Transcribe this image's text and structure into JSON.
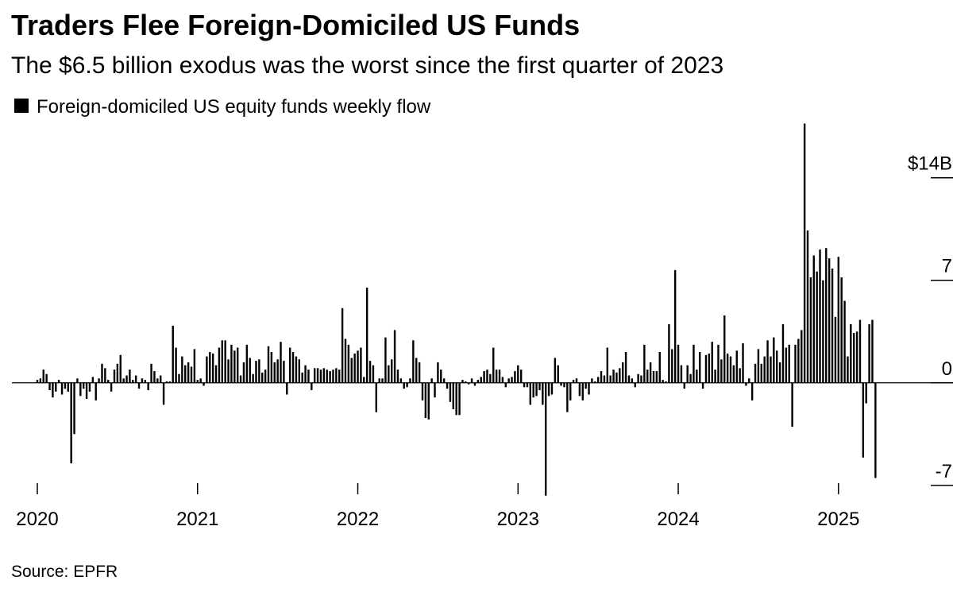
{
  "chart_data": {
    "type": "bar",
    "title": "Traders Flee Foreign-Domiciled US Funds",
    "subtitle": "The $6.5 billion exodus was the worst since the first quarter of 2023",
    "source": "Source: EPFR",
    "categories": [
      "2020",
      null,
      null,
      null,
      null,
      null,
      null,
      null,
      null,
      null,
      null,
      null,
      null,
      null,
      null,
      null,
      null,
      null,
      null,
      null,
      null,
      null,
      null,
      null,
      null,
      null,
      null,
      null,
      null,
      null,
      null,
      null,
      null,
      null,
      null,
      null,
      null,
      null,
      null,
      null,
      null,
      null,
      null,
      null,
      null,
      null,
      null,
      null,
      null,
      null,
      null,
      null,
      "2021",
      null,
      null,
      null,
      null,
      null,
      null,
      null,
      null,
      null,
      null,
      null,
      null,
      null,
      null,
      null,
      null,
      null,
      null,
      null,
      null,
      null,
      null,
      null,
      null,
      null,
      null,
      null,
      null,
      null,
      null,
      null,
      null,
      null,
      null,
      null,
      null,
      null,
      null,
      null,
      null,
      null,
      null,
      null,
      null,
      null,
      null,
      null,
      null,
      null,
      null,
      null,
      "2022",
      null,
      null,
      null,
      null,
      null,
      null,
      null,
      null,
      null,
      null,
      null,
      null,
      null,
      null,
      null,
      null,
      null,
      null,
      null,
      null,
      null,
      null,
      null,
      null,
      null,
      null,
      null,
      null,
      null,
      null,
      null,
      null,
      null,
      null,
      null,
      null,
      null,
      null,
      null,
      null,
      null,
      null,
      null,
      null,
      null,
      null,
      null,
      null,
      null,
      null,
      null,
      "2023",
      null,
      null,
      null,
      null,
      null,
      null,
      null,
      null,
      null,
      null,
      null,
      null,
      null,
      null,
      null,
      null,
      null,
      null,
      null,
      null,
      null,
      null,
      null,
      null,
      null,
      null,
      null,
      null,
      null,
      null,
      null,
      null,
      null,
      null,
      null,
      null,
      null,
      null,
      null,
      null,
      null,
      null,
      null,
      null,
      null,
      null,
      null,
      null,
      null,
      null,
      null,
      "2024",
      null,
      null,
      null,
      null,
      null,
      null,
      null,
      null,
      null,
      null,
      null,
      null,
      null,
      null,
      null,
      null,
      null,
      null,
      null,
      null,
      null,
      null,
      null,
      null,
      null,
      null,
      null,
      null,
      null,
      null,
      null,
      null,
      null,
      null,
      null,
      null,
      null,
      null,
      null,
      null,
      null,
      null,
      null,
      null,
      null,
      null,
      null,
      null,
      null,
      null,
      null,
      "2025",
      null,
      null,
      null,
      null,
      null,
      null,
      null,
      null,
      null,
      null,
      null,
      null
    ],
    "series": [
      {
        "name": "Foreign-domiciled US equity funds weekly flow",
        "color": "#000000",
        "values": [
          0.2,
          0.3,
          0.9,
          0.6,
          -0.5,
          -1.0,
          -0.6,
          0.2,
          -0.8,
          -0.4,
          -0.6,
          -5.5,
          -3.5,
          0.3,
          -0.9,
          -0.4,
          -1.1,
          -0.6,
          0.4,
          -1.2,
          0.3,
          1.3,
          1.0,
          0.2,
          -0.6,
          0.9,
          1.3,
          1.9,
          0.3,
          0.5,
          0.9,
          0.2,
          0.5,
          -0.4,
          0.3,
          0.2,
          -0.5,
          1.3,
          0.8,
          0.3,
          0.5,
          -1.5,
          0.1,
          0.1,
          3.9,
          2.4,
          0.6,
          1.8,
          1.2,
          1.4,
          1.1,
          2.3,
          0.2,
          0.3,
          -0.2,
          1.8,
          2.1,
          2.0,
          1.2,
          2.4,
          2.9,
          2.9,
          1.6,
          2.6,
          2.2,
          2.4,
          0.5,
          1.4,
          2.6,
          1.7,
          0.6,
          1.5,
          1.6,
          0.7,
          0.9,
          2.5,
          2.1,
          1.4,
          1.6,
          2.8,
          1.5,
          -0.8,
          2.4,
          2.1,
          1.8,
          1.6,
          0.7,
          1.2,
          0.9,
          -0.5,
          1.0,
          1.0,
          0.9,
          1.0,
          0.9,
          0.8,
          0.9,
          1.0,
          0.9,
          5.1,
          3.0,
          2.6,
          1.7,
          2.0,
          2.2,
          2.4,
          0.4,
          6.5,
          1.5,
          1.2,
          -2.0,
          0.3,
          0.3,
          3.1,
          1.2,
          1.6,
          3.6,
          0.9,
          0.3,
          -0.4,
          -0.3,
          0.3,
          2.9,
          1.7,
          1.4,
          -1.2,
          -2.4,
          -2.5,
          0.3,
          -1.0,
          1.4,
          0.9,
          0.3,
          -0.4,
          -1.3,
          -1.8,
          -2.2,
          -2.2,
          0.2,
          0.1,
          -0.1,
          0.3,
          -0.2,
          0.2,
          0.4,
          0.8,
          0.9,
          0.6,
          2.4,
          0.9,
          0.9,
          0.4,
          -0.3,
          0.3,
          0.4,
          0.8,
          1.2,
          0.9,
          -0.3,
          -0.3,
          -1.5,
          -1.0,
          -0.9,
          -0.5,
          -1.5,
          -7.7,
          -0.9,
          -0.8,
          1.7,
          1.2,
          -0.2,
          -0.3,
          -2.0,
          -1.2,
          0.2,
          0.3,
          -0.9,
          -1.2,
          -0.4,
          -0.8,
          0.3,
          0.1,
          0.4,
          0.8,
          0.5,
          2.4,
          0.5,
          0.9,
          0.7,
          1.0,
          1.4,
          2.1,
          0.5,
          0.3,
          -0.3,
          0.6,
          0.5,
          2.6,
          0.9,
          1.4,
          0.8,
          0.8,
          2.1,
          0.2,
          0.1,
          4.0,
          2.3,
          7.7,
          2.6,
          1.2,
          -0.4,
          1.2,
          0.6,
          2.6,
          0.9,
          2.1,
          -0.4,
          1.9,
          2.0,
          2.8,
          0.9,
          2.6,
          1.6,
          4.6,
          2.0,
          1.8,
          1.2,
          2.2,
          1.0,
          2.7,
          -0.2,
          0.3,
          -1.2,
          1.3,
          2.3,
          1.3,
          1.8,
          2.9,
          1.8,
          3.1,
          2.2,
          1.4,
          4.0,
          2.4,
          2.6,
          -3.0,
          2.6,
          3.0,
          3.6,
          17.7,
          10.4,
          7.2,
          8.7,
          7.6,
          9.1,
          7.0,
          9.2,
          8.5,
          7.8,
          4.5,
          8.6,
          7.2,
          5.6,
          1.8,
          4.0,
          3.4,
          3.5,
          4.3,
          -5.1,
          -1.4,
          4.0,
          4.3,
          -6.5
        ]
      }
    ],
    "ylim": [
      -7.5,
      18
    ],
    "yticks": [
      {
        "value": 14,
        "label": "$14B"
      },
      7,
      0,
      -7
    ]
  }
}
